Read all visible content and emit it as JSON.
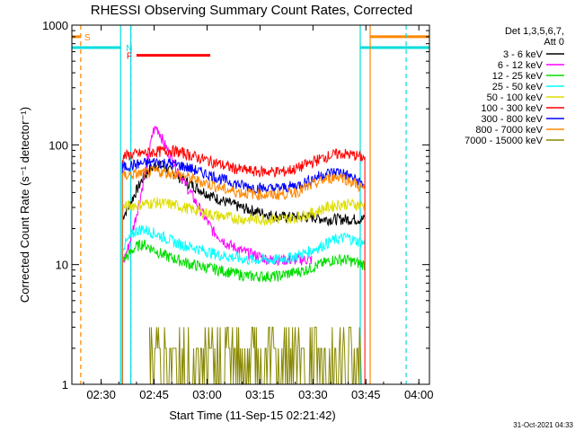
{
  "chart_data": {
    "type": "line",
    "title": "RHESSI Observing Summary Count Rates, Corrected",
    "xlabel": "Start Time (11-Sep-15 02:21:42)",
    "ylabel": "Corrected Count Rate (s⁻¹ detector⁻¹)",
    "y_scale": "log",
    "ylim": [
      1,
      1000
    ],
    "x_unit": "minutes after 02:21:42",
    "xlim": [
      0,
      101.3
    ],
    "x_ticks": [
      {
        "label": "02:30",
        "value": 8.3
      },
      {
        "label": "02:45",
        "value": 23.3
      },
      {
        "label": "03:00",
        "value": 38.3
      },
      {
        "label": "03:15",
        "value": 53.3
      },
      {
        "label": "03:30",
        "value": 68.3
      },
      {
        "label": "03:45",
        "value": 83.3
      },
      {
        "label": "04:00",
        "value": 98.3
      }
    ],
    "y_ticks": [
      {
        "label": "1",
        "value": 1
      },
      {
        "label": "10",
        "value": 10
      },
      {
        "label": "100",
        "value": 100
      },
      {
        "label": "1000",
        "value": 1000
      }
    ],
    "legend_header": [
      "Det 1,3,5,6,7,",
      "Att 0"
    ],
    "legend_position": "right",
    "data_window": [
      14.3,
      83.0
    ],
    "series": [
      {
        "name": "3 - 6 keV",
        "color": "#000000",
        "x": [
          14.3,
          16,
          18,
          20,
          22,
          24,
          26,
          28,
          30,
          32,
          36,
          40,
          44,
          48,
          52,
          56,
          60,
          64,
          68,
          72,
          76,
          80,
          83
        ],
        "y": [
          25,
          30,
          40,
          52,
          62,
          68,
          66,
          60,
          55,
          50,
          43,
          37,
          33,
          30,
          28,
          26,
          25,
          25,
          25,
          24,
          24,
          24,
          24
        ]
      },
      {
        "name": "6 - 12 keV",
        "color": "#ff00ff",
        "x": [
          14.3,
          16,
          18,
          20,
          22,
          23,
          24,
          25,
          26,
          28,
          30,
          32,
          34,
          36,
          38,
          40,
          44,
          48,
          52,
          56,
          60,
          64,
          68
        ],
        "y": [
          10,
          14,
          24,
          45,
          90,
          130,
          140,
          125,
          105,
          80,
          62,
          48,
          38,
          30,
          24,
          19,
          15,
          13,
          12,
          11,
          11,
          11,
          11
        ]
      },
      {
        "name": "12 - 25 keV",
        "color": "#00dd00",
        "x": [
          14.3,
          16,
          18,
          20,
          22,
          24,
          26,
          28,
          30,
          34,
          38,
          42,
          46,
          50,
          54,
          58,
          62,
          66,
          70,
          74,
          78,
          80,
          83
        ],
        "y": [
          11,
          12,
          14,
          15,
          14,
          13,
          12,
          11.5,
          11,
          10,
          9.5,
          9,
          8.5,
          8,
          8,
          8,
          8.5,
          9,
          10,
          11,
          11,
          10.5,
          10
        ]
      },
      {
        "name": "25 - 50 keV",
        "color": "#00ffff",
        "x": [
          14.3,
          16,
          18,
          20,
          22,
          24,
          26,
          28,
          30,
          34,
          38,
          42,
          46,
          50,
          54,
          58,
          62,
          66,
          70,
          74,
          78,
          80,
          83
        ],
        "y": [
          14,
          16,
          19,
          20,
          19,
          18,
          17,
          16,
          15,
          14,
          13,
          12,
          11.5,
          11,
          11,
          11,
          11.5,
          12.5,
          14,
          16,
          17,
          16,
          15
        ]
      },
      {
        "name": "50 - 100 keV",
        "color": "#dddd00",
        "x": [
          14.3,
          16,
          20,
          24,
          28,
          32,
          36,
          40,
          44,
          48,
          52,
          56,
          60,
          64,
          68,
          72,
          76,
          80,
          83
        ],
        "y": [
          30,
          31,
          32,
          33,
          32,
          30,
          28,
          26,
          25,
          24,
          24,
          24,
          24,
          25,
          27,
          30,
          32,
          32,
          31
        ]
      },
      {
        "name": "100 - 300 keV",
        "color": "#ff0000",
        "x": [
          14.3,
          16,
          20,
          24,
          28,
          32,
          36,
          40,
          44,
          48,
          52,
          56,
          60,
          64,
          68,
          72,
          76,
          80,
          83
        ],
        "y": [
          80,
          82,
          85,
          88,
          90,
          85,
          78,
          72,
          66,
          62,
          60,
          60,
          60,
          64,
          72,
          80,
          85,
          82,
          78
        ]
      },
      {
        "name": "300 - 800 keV",
        "color": "#0000ff",
        "x": [
          14.3,
          16,
          20,
          24,
          28,
          32,
          36,
          40,
          44,
          48,
          52,
          56,
          60,
          64,
          68,
          72,
          76,
          80,
          83
        ],
        "y": [
          65,
          67,
          70,
          72,
          70,
          66,
          60,
          55,
          50,
          46,
          44,
          43,
          44,
          46,
          52,
          58,
          60,
          52,
          46
        ]
      },
      {
        "name": "800 - 7000 keV",
        "color": "#ff8800",
        "x": [
          14.3,
          16,
          20,
          24,
          28,
          32,
          36,
          40,
          44,
          48,
          52,
          56,
          60,
          64,
          68,
          72,
          76,
          80,
          83
        ],
        "y": [
          55,
          56,
          58,
          60,
          58,
          55,
          50,
          46,
          42,
          40,
          39,
          38,
          39,
          41,
          46,
          52,
          55,
          48,
          42
        ]
      },
      {
        "name": "7000 - 15000 keV",
        "color": "#888800",
        "x": [
          22,
          24,
          26,
          28,
          30,
          32,
          34,
          36,
          38,
          40,
          44,
          48,
          52,
          56,
          60,
          64,
          68,
          70,
          72,
          74,
          76,
          78,
          80,
          82
        ],
        "y": [
          2,
          3,
          2,
          3,
          2,
          3,
          2,
          2,
          3,
          2,
          2,
          3,
          2,
          2,
          3,
          2,
          3,
          2,
          3,
          2,
          3,
          2,
          3,
          2
        ]
      }
    ],
    "annotations": {
      "S": {
        "label": "S",
        "color": "#ff8800",
        "x": 2.5,
        "y": 800,
        "lines_x": [
          2.5
        ]
      },
      "N": {
        "label": "N",
        "color": "#00dddd",
        "x": 13.8,
        "y": 650,
        "lines_x": [
          13.8,
          16.7,
          81.7
        ]
      },
      "F": {
        "label": "F",
        "color": "#ff0000",
        "x_range": [
          18.3,
          39.2
        ],
        "y": 560
      },
      "orange_dashed_x": [
        2.5,
        84.5
      ],
      "cyan_dashed_x": [
        16.7,
        94.7
      ],
      "night_bars": [
        [
          0,
          13.8
        ],
        [
          81.7,
          101.3
        ]
      ],
      "saa_bars": [
        [
          0,
          2.5
        ],
        [
          84.5,
          101.3
        ]
      ]
    },
    "footer_stamp": "31-Oct-2021 04:33"
  }
}
